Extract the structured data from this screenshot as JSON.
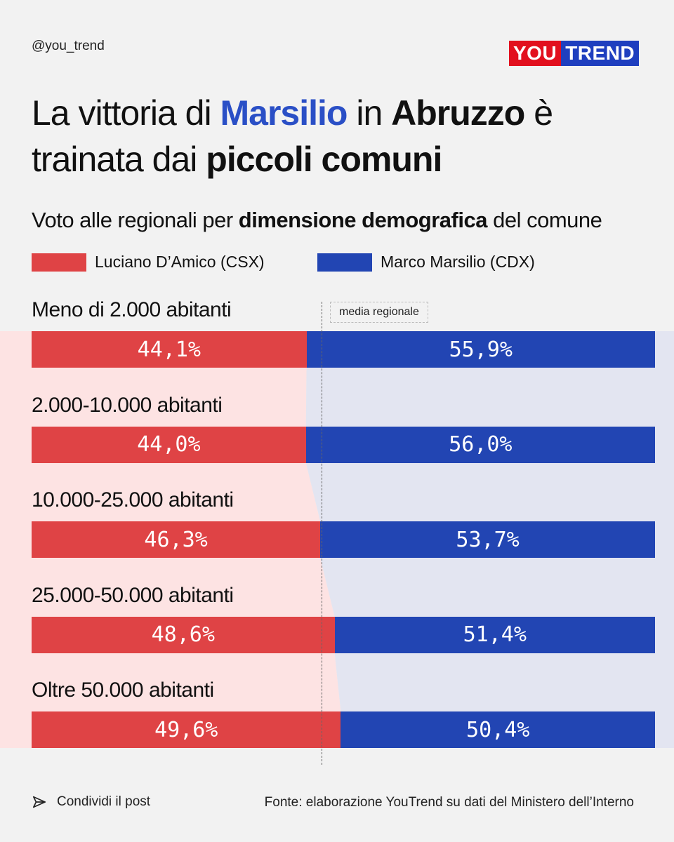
{
  "handle": "@you_trend",
  "logo": {
    "part1": "YOU",
    "part2": "TREND"
  },
  "title": {
    "t1": "La vittoria di ",
    "t2": "Marsilio",
    "t3": " in ",
    "t4": "Abruzzo",
    "t5": " è trainata dai ",
    "t6": "piccoli comuni"
  },
  "subtitle": {
    "s1": "Voto alle regionali per ",
    "s2": "dimensione demografica",
    "s3": " del comune"
  },
  "legend": [
    {
      "label": "Luciano D’Amico (CSX)",
      "color": "#df4345"
    },
    {
      "label": "Marco Marsilio (CDX)",
      "color": "#2245b3"
    }
  ],
  "avg_label": "media regionale",
  "footer": {
    "share": "Condividi il post",
    "source": "Fonte: elaborazione YouTrend su dati del Ministero dell’Interno"
  },
  "chart_data": {
    "type": "bar",
    "stacked": true,
    "orientation": "horizontal",
    "categories": [
      "Meno di 2.000 abitanti",
      "2.000-10.000 abitanti",
      "10.000-25.000 abitanti",
      "25.000-50.000 abitanti",
      "Oltre 50.000 abitanti"
    ],
    "series": [
      {
        "name": "Luciano D’Amico (CSX)",
        "color": "#df4345",
        "values": [
          44.1,
          44.0,
          46.3,
          48.6,
          49.6
        ],
        "labels": [
          "44,1%",
          "44,0%",
          "46,3%",
          "48,6%",
          "49,6%"
        ]
      },
      {
        "name": "Marco Marsilio (CDX)",
        "color": "#2245b3",
        "values": [
          55.9,
          56.0,
          53.7,
          51.4,
          50.4
        ],
        "labels": [
          "55,9%",
          "56,0%",
          "53,7%",
          "51,4%",
          "50,4%"
        ]
      }
    ],
    "xlim": [
      0,
      100
    ],
    "reference_line": {
      "label": "media regionale",
      "value": 46.2
    },
    "background_colors": {
      "left": "#fde3e3",
      "right": "#e3e5f1"
    }
  }
}
